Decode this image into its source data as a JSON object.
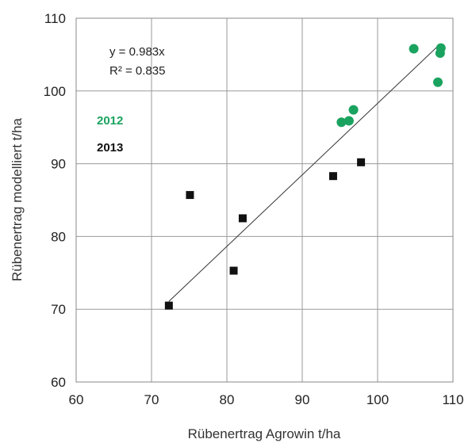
{
  "chart_data": {
    "type": "scatter",
    "xlabel": "Rübenertrag Agrowin t/ha",
    "ylabel": "Rübenertrag modelliert t/ha",
    "xlim": [
      60,
      110
    ],
    "ylim": [
      60,
      110
    ],
    "xticks": [
      "60",
      "70",
      "80",
      "90",
      "100",
      "110"
    ],
    "yticks": [
      "60",
      "70",
      "80",
      "90",
      "100",
      "110"
    ],
    "grid": true,
    "legend_position": "top-left",
    "equation": "y = 0.983x",
    "r_squared": "R² = 0.835",
    "trendline": {
      "slope": 0.983,
      "intercept": 0,
      "x_range": [
        72.3,
        108.3
      ]
    },
    "series": [
      {
        "name": "2012",
        "color": "#1aa35f",
        "marker": "circle",
        "points": [
          [
            95.2,
            95.7
          ],
          [
            96.2,
            95.9
          ],
          [
            96.8,
            97.4
          ],
          [
            104.8,
            105.8
          ],
          [
            108.3,
            105.2
          ],
          [
            108.4,
            105.9
          ],
          [
            108.0,
            101.2
          ]
        ]
      },
      {
        "name": "2013",
        "color": "#111111",
        "marker": "square",
        "points": [
          [
            72.3,
            70.5
          ],
          [
            75.1,
            85.7
          ],
          [
            80.9,
            75.3
          ],
          [
            82.1,
            82.5
          ],
          [
            94.1,
            88.3
          ],
          [
            97.8,
            90.2
          ]
        ]
      }
    ]
  }
}
